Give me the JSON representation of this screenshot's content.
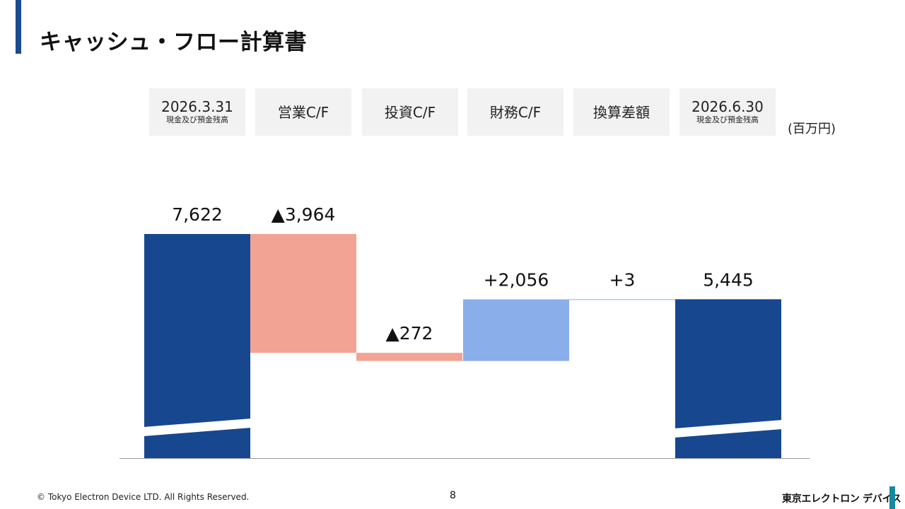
{
  "title": "キャッシュ・フロー計算書",
  "headers": [
    {
      "main": "2026.3.31",
      "sub": "現金及び預金残高"
    },
    {
      "main": "営業C/F",
      "sub": ""
    },
    {
      "main": "投資C/F",
      "sub": ""
    },
    {
      "main": "財務C/F",
      "sub": ""
    },
    {
      "main": "換算差額",
      "sub": ""
    },
    {
      "main": "2026.6.30",
      "sub": "現金及び預金残高"
    }
  ],
  "unit": "(百万円)",
  "chart_data": {
    "type": "waterfall",
    "categories": [
      "2026.3.31 現金及び預金残高",
      "営業C/F",
      "投資C/F",
      "財務C/F",
      "換算差額",
      "2026.6.30 現金及び預金残高"
    ],
    "values": [
      7622,
      -3964,
      -272,
      2056,
      3,
      5445
    ],
    "labels": [
      "7,622",
      "▲3,964",
      "▲272",
      "+2,056",
      "+3",
      "5,445"
    ],
    "kinds": [
      "total",
      "delta",
      "delta",
      "delta",
      "delta",
      "total"
    ],
    "axis_broken": true,
    "colors": {
      "total": "#17478f",
      "negative": "#f2a393",
      "positive": "#8aaeea",
      "connector": "#8fb0cc",
      "axis": "#9a9a9a"
    }
  },
  "footer": {
    "copyright": "© Tokyo Electron Device LTD. All Rights Reserved.",
    "page": "8",
    "logo": "東京エレクトロン デバイス"
  }
}
